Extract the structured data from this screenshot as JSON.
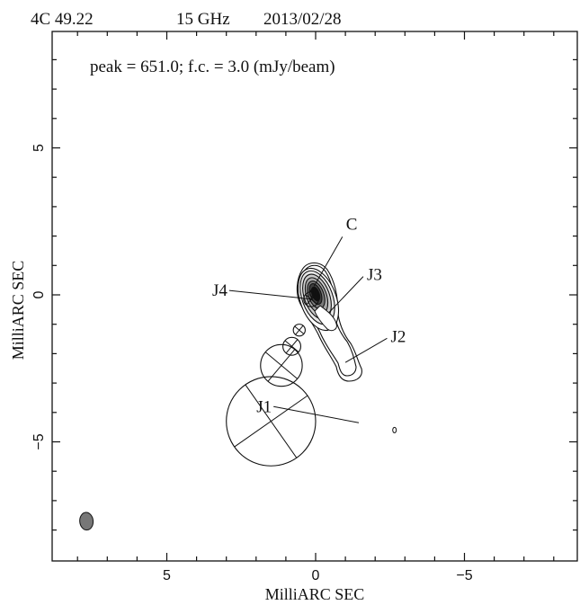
{
  "header": {
    "source": "4C 49.22",
    "frequency": "15 GHz",
    "date": "2013/02/28"
  },
  "chart_data": {
    "type": "contour",
    "annotation": "peak = 651.0;  f.c. = 3.0 (mJy/beam)",
    "xlabel": "MilliARC SEC",
    "ylabel": "MilliARC SEC",
    "xlim": [
      8.8,
      -8.8
    ],
    "ylim": [
      -8.9,
      8.9
    ],
    "x_tick_labels": [
      {
        "value": 5,
        "label": "5"
      },
      {
        "value": 0,
        "label": "0"
      },
      {
        "value": -5,
        "label": "−5"
      }
    ],
    "y_tick_labels": [
      {
        "value": 5,
        "label": "5"
      },
      {
        "value": 0,
        "label": "0"
      },
      {
        "value": -5,
        "label": "−5"
      }
    ],
    "peak_mjy_per_beam": 651.0,
    "first_contour_mjy_per_beam": 3.0,
    "contour_levels_factor": [
      1,
      2,
      4,
      8,
      16,
      32,
      64,
      128
    ],
    "components": [
      {
        "name": "C",
        "x": 0.05,
        "y": 0.05,
        "size": 0.15
      },
      {
        "name": "J4",
        "x": 0.15,
        "y": -0.15,
        "size": 0.25
      },
      {
        "name": "J3",
        "x": 0.55,
        "y": -1.2,
        "size": 0.2
      },
      {
        "name": "J2",
        "x": 0.8,
        "y": -1.75,
        "size": 0.3
      },
      {
        "name": "J1",
        "x": 1.15,
        "y": -2.4,
        "size": 0.7
      },
      {
        "name": "",
        "x": 1.5,
        "y": -4.3,
        "size": 1.5
      }
    ],
    "label_anchors": [
      {
        "name": "C",
        "x": -0.9,
        "y": 2.1
      },
      {
        "name": "J3",
        "x": -1.6,
        "y": 0.5
      },
      {
        "name": "J4",
        "x": 2.3,
        "y": 0.15
      },
      {
        "name": "J2",
        "x": -2.4,
        "y": -1.6
      },
      {
        "name": "J1",
        "x": 0.75,
        "y": -3.8
      }
    ],
    "small_feature": {
      "x": -2.65,
      "y": -4.6
    },
    "beam": {
      "x": 7.7,
      "y": -7.7,
      "major": 0.6,
      "minor": 0.45,
      "pa_deg": -5
    }
  }
}
